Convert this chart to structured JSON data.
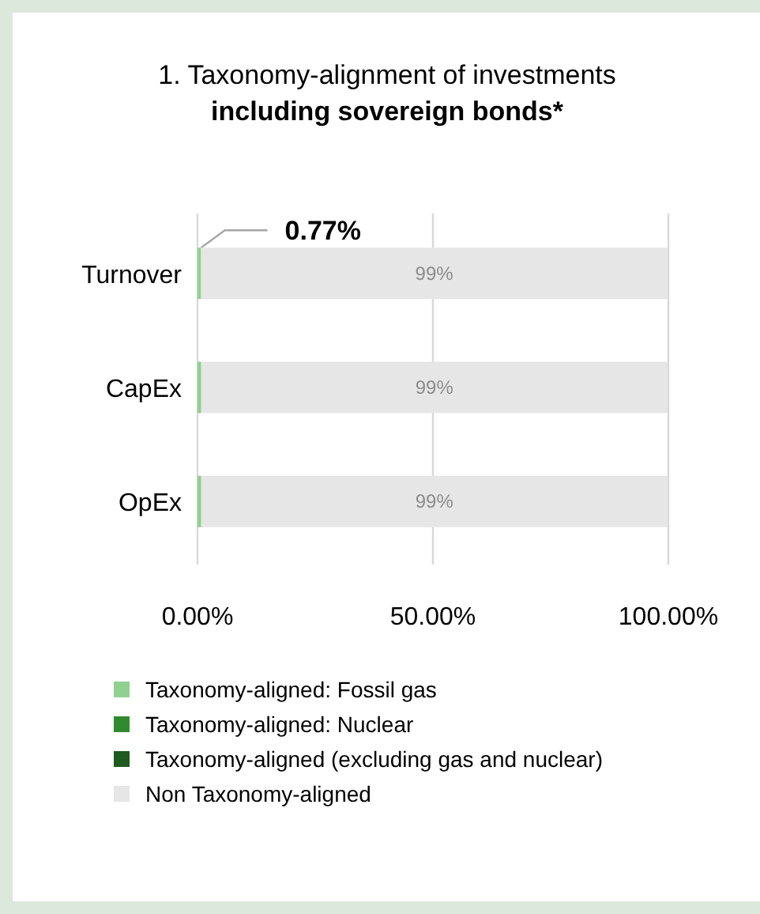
{
  "chart_data": {
    "type": "bar",
    "orientation": "horizontal",
    "stacked": true,
    "title": "1. Taxonomy-alignment of investments",
    "subtitle": "including sovereign bonds*",
    "categories": [
      "Turnover",
      "CapEx",
      "OpEx"
    ],
    "xlim": [
      0,
      100
    ],
    "xticks": [
      {
        "value": 0,
        "label": "0.00%"
      },
      {
        "value": 50,
        "label": "50.00%"
      },
      {
        "value": 100,
        "label": "100.00%"
      }
    ],
    "grid": "x",
    "legend": "bottom",
    "series": [
      {
        "name": "Taxonomy-aligned: Fossil gas",
        "color": "#8fd18f",
        "values": [
          0.77,
          0.8,
          0.8
        ],
        "value_labels": [
          "0.77%",
          null,
          null
        ]
      },
      {
        "name": "Taxonomy-aligned: Nuclear",
        "color": "#2e8b2e",
        "values": [
          0,
          0,
          0
        ]
      },
      {
        "name": "Taxonomy-aligned (excluding gas and nuclear)",
        "color": "#1f5a1f",
        "values": [
          0,
          0,
          0
        ]
      },
      {
        "name": "Non Taxonomy-aligned",
        "color": "#e6e6e6",
        "values": [
          99,
          99,
          99
        ],
        "value_labels": [
          "99%",
          "99%",
          "99%"
        ]
      }
    ]
  }
}
